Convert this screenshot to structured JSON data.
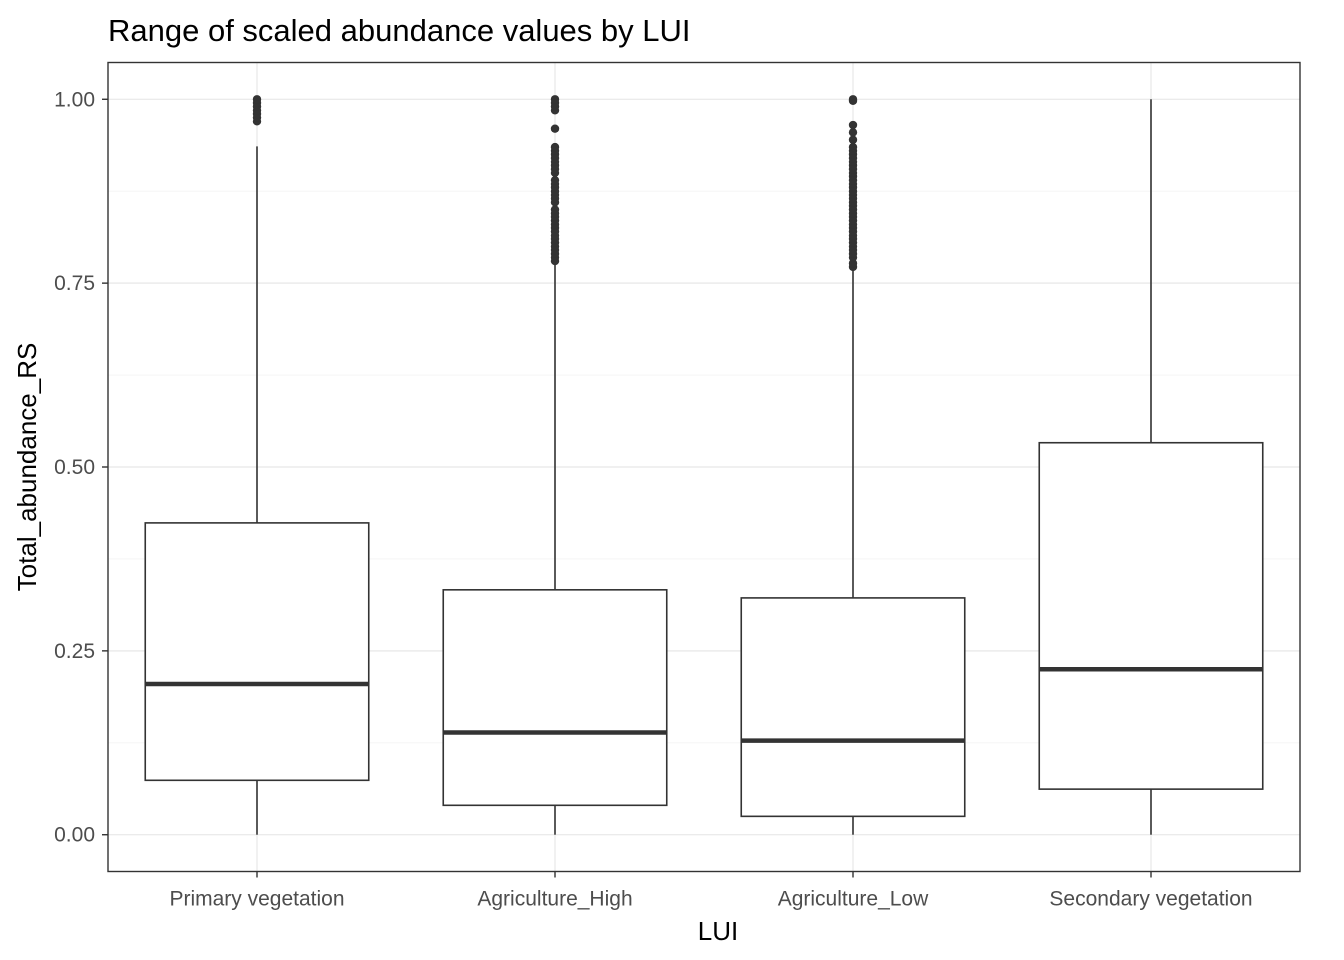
{
  "chart_data": {
    "type": "boxplot",
    "title": "Range of scaled abundance values by LUI",
    "xlabel": "LUI",
    "ylabel": "Total_abundance_RS",
    "categories": [
      "Primary vegetation",
      "Agriculture_High",
      "Agriculture_Low",
      "Secondary vegetation"
    ],
    "ylim": [
      -0.05,
      1.05
    ],
    "yticks": [
      0.0,
      0.25,
      0.5,
      0.75,
      1.0
    ],
    "ytick_labels": [
      "0.00",
      "0.25",
      "0.50",
      "0.75",
      "1.00"
    ],
    "grid": true,
    "boxes": [
      {
        "category": "Primary vegetation",
        "whisker_low": 0.0,
        "q1": 0.074,
        "median": 0.205,
        "q3": 0.424,
        "whisker_high": 0.936,
        "outliers": [
          0.97,
          0.975,
          0.98,
          0.985,
          0.99,
          0.995,
          1.0
        ]
      },
      {
        "category": "Agriculture_High",
        "whisker_low": 0.0,
        "q1": 0.04,
        "median": 0.139,
        "q3": 0.333,
        "whisker_high": 0.778,
        "outliers": [
          0.78,
          0.785,
          0.79,
          0.795,
          0.8,
          0.805,
          0.81,
          0.815,
          0.82,
          0.825,
          0.83,
          0.835,
          0.84,
          0.845,
          0.85,
          0.86,
          0.865,
          0.87,
          0.875,
          0.88,
          0.885,
          0.89,
          0.9,
          0.905,
          0.91,
          0.915,
          0.92,
          0.925,
          0.93,
          0.935,
          0.96,
          0.985,
          0.99,
          0.995,
          1.0
        ]
      },
      {
        "category": "Agriculture_Low",
        "whisker_low": 0.0,
        "q1": 0.025,
        "median": 0.128,
        "q3": 0.322,
        "whisker_high": 0.77,
        "outliers": [
          0.772,
          0.777,
          0.785,
          0.79,
          0.795,
          0.8,
          0.805,
          0.81,
          0.815,
          0.82,
          0.825,
          0.83,
          0.835,
          0.84,
          0.845,
          0.85,
          0.855,
          0.86,
          0.865,
          0.87,
          0.875,
          0.88,
          0.885,
          0.89,
          0.895,
          0.9,
          0.905,
          0.91,
          0.915,
          0.92,
          0.925,
          0.93,
          0.935,
          0.945,
          0.955,
          0.965,
          0.998,
          1.0
        ]
      },
      {
        "category": "Secondary vegetation",
        "whisker_low": 0.0,
        "q1": 0.062,
        "median": 0.225,
        "q3": 0.533,
        "whisker_high": 1.0,
        "outliers": []
      }
    ],
    "colors": {
      "box_line": "#333333",
      "grid_major": "#ebebeb",
      "grid_minor": "#f5f5f5",
      "panel_border": "#333333",
      "tick_text": "#4d4d4d"
    }
  }
}
